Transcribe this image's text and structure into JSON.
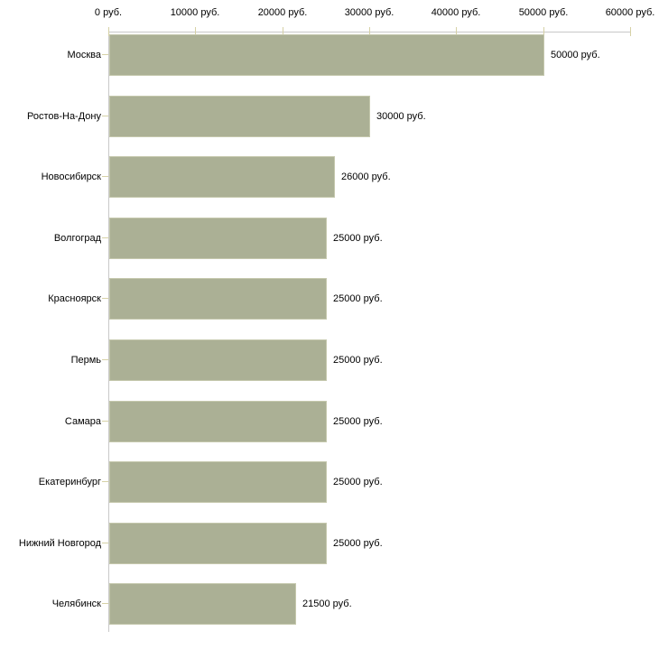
{
  "chart_data": {
    "type": "bar",
    "orientation": "horizontal",
    "title": "",
    "xlabel": "",
    "ylabel": "",
    "grid": false,
    "legend": false,
    "x_axis": {
      "range": [
        0,
        60000
      ],
      "unit": "руб.",
      "tick_values": [
        0,
        10000,
        20000,
        30000,
        40000,
        50000,
        60000
      ],
      "tick_labels": [
        "0 руб.",
        "10000 руб.",
        "20000 руб.",
        "30000 руб.",
        "40000 руб.",
        "50000 руб.",
        "60000 руб."
      ]
    },
    "categories": [
      "Москва",
      "Ростов-На-Дону",
      "Новосибирск",
      "Волгоград",
      "Красноярск",
      "Пермь",
      "Самара",
      "Екатеринбург",
      "Нижний Новгород",
      "Челябинск"
    ],
    "values": [
      50000,
      30000,
      26000,
      25000,
      25000,
      25000,
      25000,
      25000,
      25000,
      21500
    ],
    "value_labels": [
      "50000 руб.",
      "30000 руб.",
      "26000 руб.",
      "25000 руб.",
      "25000 руб.",
      "25000 руб.",
      "25000 руб.",
      "25000 руб.",
      "25000 руб.",
      "21500 руб."
    ]
  },
  "colors": {
    "background": "#ffffff",
    "bar_fill": "#abb095",
    "bar_border": "#c5c8ad",
    "axis_line": "#c8c8c8",
    "tick_mark": "#d6d1a6",
    "text": "#000000"
  }
}
